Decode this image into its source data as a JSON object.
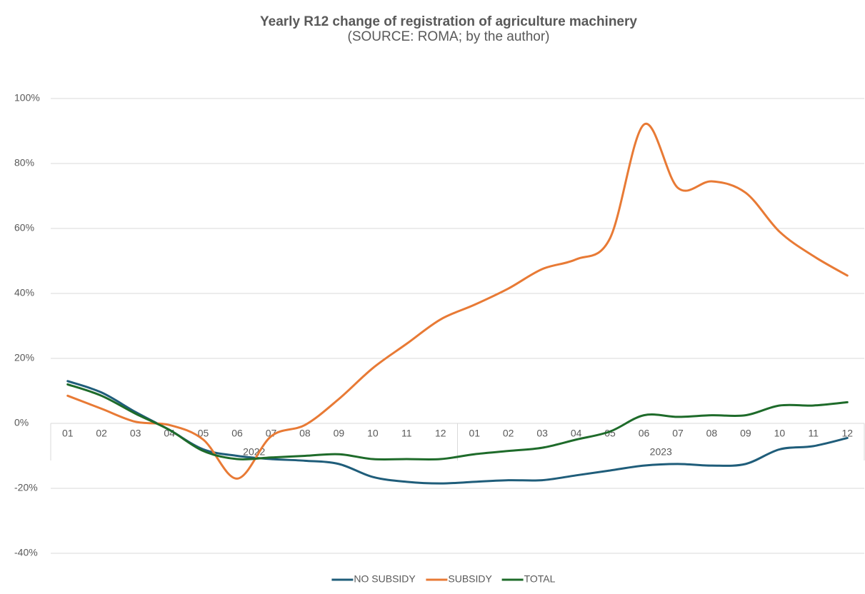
{
  "chart_data": {
    "type": "line",
    "title": "Yearly R12 change of registration of agriculture machinery",
    "subtitle": "(SOURCE: ROMA; by the author)",
    "categories": [
      "01",
      "02",
      "03",
      "04",
      "05",
      "06",
      "07",
      "08",
      "09",
      "10",
      "11",
      "12",
      "01",
      "02",
      "03",
      "04",
      "05",
      "06",
      "07",
      "08",
      "09",
      "10",
      "11",
      "12"
    ],
    "category_groups": [
      "2022",
      "2023"
    ],
    "series": [
      {
        "name": "NO SUBSIDY",
        "color": "#1f5d7a",
        "values": [
          13,
          9.5,
          3.5,
          -2,
          -8,
          -10,
          -11,
          -11.5,
          -12.5,
          -16.5,
          -18,
          -18.5,
          -18,
          -17.5,
          -17.5,
          -16,
          -14.5,
          -13,
          -12.5,
          -13,
          -12.5,
          -8,
          -7,
          -4.5
        ]
      },
      {
        "name": "SUBSIDY",
        "color": "#e87a35",
        "values": [
          8.5,
          4.5,
          0.5,
          -0.5,
          -5,
          -17,
          -4,
          -0.5,
          7.5,
          17,
          24.5,
          32,
          36.5,
          41.5,
          47.5,
          50.5,
          57,
          92,
          72.5,
          74.5,
          71,
          59,
          51.5,
          45.5
        ]
      },
      {
        "name": "TOTAL",
        "color": "#1e6b2a",
        "values": [
          12,
          8.5,
          3,
          -2,
          -8.5,
          -11,
          -10.5,
          -10,
          -9.5,
          -11,
          -11,
          -11,
          -9.5,
          -8.5,
          -7.5,
          -5,
          -2.5,
          2.5,
          2,
          2.5,
          2.5,
          5.5,
          5.5,
          6.5
        ]
      }
    ],
    "ylim": [
      -40,
      100
    ],
    "yticks": [
      {
        "value": -40,
        "label": "-40%"
      },
      {
        "value": -20,
        "label": "-20%"
      },
      {
        "value": 0,
        "label": "0%"
      },
      {
        "value": 20,
        "label": "20%"
      },
      {
        "value": 40,
        "label": "40%"
      },
      {
        "value": 60,
        "label": "60%"
      },
      {
        "value": 80,
        "label": "80%"
      },
      {
        "value": 100,
        "label": "100%"
      }
    ],
    "grid": true,
    "legend": "bottom"
  }
}
